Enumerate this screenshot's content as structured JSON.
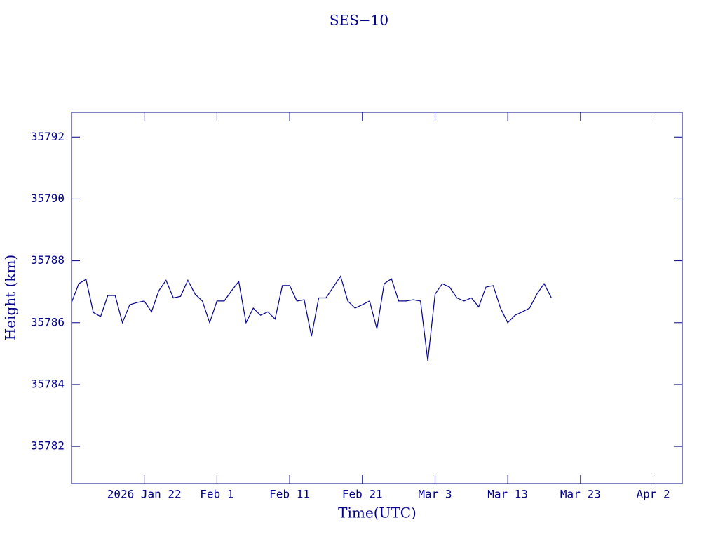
{
  "chart_data": {
    "type": "line",
    "title": "SES−10",
    "xlabel": "Time(UTC)",
    "ylabel": "Height (km)",
    "color": "#00008b",
    "xlim": [
      "2026-01-12",
      "2026-04-06"
    ],
    "xticks": [
      {
        "value": "2026-01-22",
        "label": "2026 Jan 22"
      },
      {
        "value": "2026-02-01",
        "label": "Feb  1"
      },
      {
        "value": "2026-02-11",
        "label": "Feb 11"
      },
      {
        "value": "2026-02-21",
        "label": "Feb 21"
      },
      {
        "value": "2026-03-03",
        "label": "Mar  3"
      },
      {
        "value": "2026-03-13",
        "label": "Mar 13"
      },
      {
        "value": "2026-03-23",
        "label": "Mar 23"
      },
      {
        "value": "2026-04-02",
        "label": "Apr  2"
      }
    ],
    "ylim": [
      35780.8,
      35792.8
    ],
    "yticks": [
      35782,
      35784,
      35786,
      35788,
      35790,
      35792
    ],
    "x": [
      "2026-01-12",
      "2026-01-13",
      "2026-01-14",
      "2026-01-15",
      "2026-01-16",
      "2026-01-17",
      "2026-01-18",
      "2026-01-19",
      "2026-01-20",
      "2026-01-21",
      "2026-01-22",
      "2026-01-23",
      "2026-01-24",
      "2026-01-25",
      "2026-01-26",
      "2026-01-27",
      "2026-01-28",
      "2026-01-29",
      "2026-01-30",
      "2026-01-31",
      "2026-02-01",
      "2026-02-02",
      "2026-02-03",
      "2026-02-04",
      "2026-02-05",
      "2026-02-06",
      "2026-02-07",
      "2026-02-08",
      "2026-02-09",
      "2026-02-10",
      "2026-02-11",
      "2026-02-12",
      "2026-02-13",
      "2026-02-14",
      "2026-02-15",
      "2026-02-16",
      "2026-02-17",
      "2026-02-18",
      "2026-02-19",
      "2026-02-20",
      "2026-02-21",
      "2026-02-22",
      "2026-02-23",
      "2026-02-24",
      "2026-02-25",
      "2026-02-26",
      "2026-02-27",
      "2026-02-28",
      "2026-03-01",
      "2026-03-02",
      "2026-03-03",
      "2026-03-04",
      "2026-03-05",
      "2026-03-06",
      "2026-03-07",
      "2026-03-08",
      "2026-03-09",
      "2026-03-10",
      "2026-03-11",
      "2026-03-12",
      "2026-03-13",
      "2026-03-14",
      "2026-03-15",
      "2026-03-16",
      "2026-03-17",
      "2026-03-18",
      "2026-03-19"
    ],
    "values": [
      35786.65,
      35787.26,
      35787.4,
      35786.33,
      35786.2,
      35786.88,
      35786.88,
      35786.0,
      35786.58,
      35786.65,
      35786.7,
      35786.35,
      35787.03,
      35787.37,
      35786.8,
      35786.85,
      35787.37,
      35786.92,
      35786.7,
      35786.0,
      35786.7,
      35786.7,
      35787.03,
      35787.33,
      35786.0,
      35786.47,
      35786.24,
      35786.35,
      35786.12,
      35787.2,
      35787.2,
      35786.7,
      35786.74,
      35785.56,
      35786.8,
      35786.8,
      35787.15,
      35787.5,
      35786.7,
      35786.47,
      35786.58,
      35786.7,
      35785.8,
      35787.26,
      35787.42,
      35786.7,
      35786.7,
      35786.74,
      35786.7,
      35784.77,
      35786.92,
      35787.26,
      35787.15,
      35786.8,
      35786.7,
      35786.8,
      35786.51,
      35787.15,
      35787.2,
      35786.47,
      35786.0,
      35786.24,
      35786.35,
      35786.47,
      35786.92,
      35787.26,
      35786.8
    ]
  }
}
